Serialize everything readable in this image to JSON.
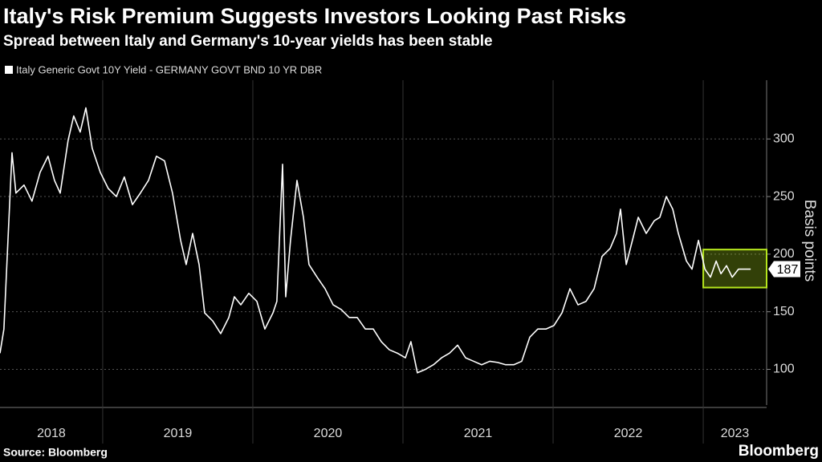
{
  "chart_data": {
    "type": "line",
    "title": "Italy's Risk Premium Suggests Investors Looking Past Risks",
    "subtitle": "Spread between Italy and Germany's 10-year yields has been stable",
    "ylabel": "Basis points",
    "source": "Source: Bloomberg",
    "brand": "Bloomberg",
    "year_labels": [
      "2018",
      "2019",
      "2020",
      "2021",
      "2022",
      "2023"
    ],
    "xlim": [
      2018.316,
      2023.422
    ],
    "xticks": [
      2019,
      2020,
      2021,
      2022,
      2023
    ],
    "ylim": [
      69,
      351
    ],
    "yticks": [
      100,
      150,
      200,
      250,
      300
    ],
    "grid": true,
    "highlight": {
      "xlim": [
        2023,
        2023.422
      ],
      "ylim": [
        171,
        204
      ],
      "color": "#b5e61d"
    },
    "series": [
      {
        "name": "Italy Generic Govt 10Y Yield - GERMANY GOVT BND 10 YR DBR",
        "color": "#ffffff",
        "x": [
          2018.316,
          2018.342,
          2018.369,
          2018.396,
          2018.422,
          2018.476,
          2018.529,
          2018.583,
          2018.636,
          2018.679,
          2018.717,
          2018.77,
          2018.807,
          2018.85,
          2018.888,
          2018.93,
          2018.984,
          2019.037,
          2019.091,
          2019.144,
          2019.198,
          2019.251,
          2019.305,
          2019.358,
          2019.412,
          2019.465,
          2019.519,
          2019.556,
          2019.599,
          2019.642,
          2019.679,
          2019.733,
          2019.786,
          2019.84,
          2019.877,
          2019.92,
          2019.973,
          2020.027,
          2020.08,
          2020.134,
          2020.16,
          2020.198,
          2020.219,
          2020.251,
          2020.294,
          2020.337,
          2020.374,
          2020.428,
          2020.481,
          2020.535,
          2020.588,
          2020.642,
          2020.695,
          2020.749,
          2020.802,
          2020.856,
          2020.909,
          2020.963,
          2021.016,
          2021.053,
          2021.096,
          2021.15,
          2021.203,
          2021.257,
          2021.31,
          2021.364,
          2021.417,
          2021.471,
          2021.524,
          2021.578,
          2021.631,
          2021.684,
          2021.738,
          2021.791,
          2021.845,
          2021.898,
          2021.952,
          2022.005,
          2022.059,
          2022.112,
          2022.166,
          2022.219,
          2022.273,
          2022.326,
          2022.38,
          2022.422,
          2022.449,
          2022.487,
          2022.54,
          2022.567,
          2022.62,
          2022.674,
          2022.711,
          2022.754,
          2022.797,
          2022.834,
          2022.888,
          2022.925,
          2022.968,
          2023.011,
          2023.048,
          2023.086,
          2023.118,
          2023.155,
          2023.193,
          2023.235,
          2023.316
        ],
        "values": [
          114,
          135,
          212,
          288,
          253,
          260,
          246,
          271,
          285,
          264,
          253,
          299,
          320,
          306,
          327,
          292,
          271,
          257,
          250,
          267,
          243,
          253,
          264,
          285,
          281,
          253,
          212,
          191,
          218,
          191,
          149,
          142,
          131,
          145,
          163,
          156,
          166,
          159,
          135,
          149,
          159,
          278,
          163,
          212,
          264,
          232,
          191,
          180,
          170,
          156,
          152,
          145,
          145,
          135,
          135,
          124,
          117,
          114,
          110,
          124,
          97,
          100,
          104,
          110,
          114,
          121,
          110,
          107,
          104,
          107,
          106,
          104,
          104,
          107,
          128,
          135,
          135,
          138,
          149,
          170,
          156,
          159,
          170,
          198,
          205,
          218,
          239,
          191,
          218,
          232,
          218,
          229,
          232,
          250,
          239,
          218,
          194,
          187,
          212,
          187,
          180,
          194,
          183,
          190,
          180,
          187,
          187
        ]
      }
    ]
  }
}
